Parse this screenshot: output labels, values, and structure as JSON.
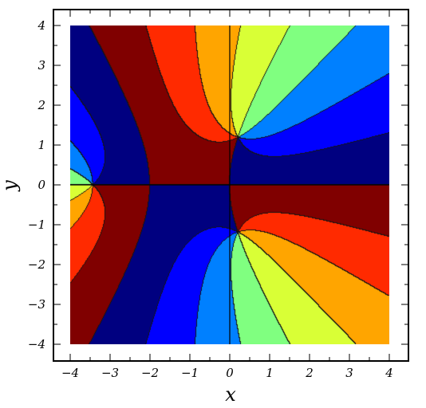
{
  "chart_data": {
    "type": "heatmap",
    "subtype": "filled-contour",
    "function": "phase (argument) of z^3 + 3z^2 + 5 (z = x + i·y), cyclic color bands; branch cut along y = 0 for x < -2.35",
    "xlabel": "x",
    "ylabel": "y",
    "xlim": [
      -4,
      4
    ],
    "ylim": [
      -4,
      4
    ],
    "x_ticks": [
      -4,
      -3,
      -2,
      -1,
      0,
      1,
      2,
      3,
      4
    ],
    "x_tick_labels": [
      "−4",
      "−3",
      "−2",
      "−1",
      "0",
      "1",
      "2",
      "3",
      "4"
    ],
    "y_ticks": [
      -4,
      -3,
      -2,
      -1,
      0,
      1,
      2,
      3,
      4
    ],
    "y_tick_labels": [
      "−4",
      "−3",
      "−2",
      "−1",
      "0",
      "1",
      "2",
      "3",
      "4"
    ],
    "reference_lines": [
      {
        "orientation": "vertical",
        "value": 0
      },
      {
        "orientation": "horizontal",
        "value": 0
      }
    ],
    "critical_point": {
      "x": -2.35,
      "y": 0
    },
    "color_bands": [
      "#000080",
      "#0000ff",
      "#0080ff",
      "#80ff80",
      "#d9ff36",
      "#ffa500",
      "#ff2a00",
      "#800000"
    ],
    "grid": false,
    "legend": "none"
  }
}
